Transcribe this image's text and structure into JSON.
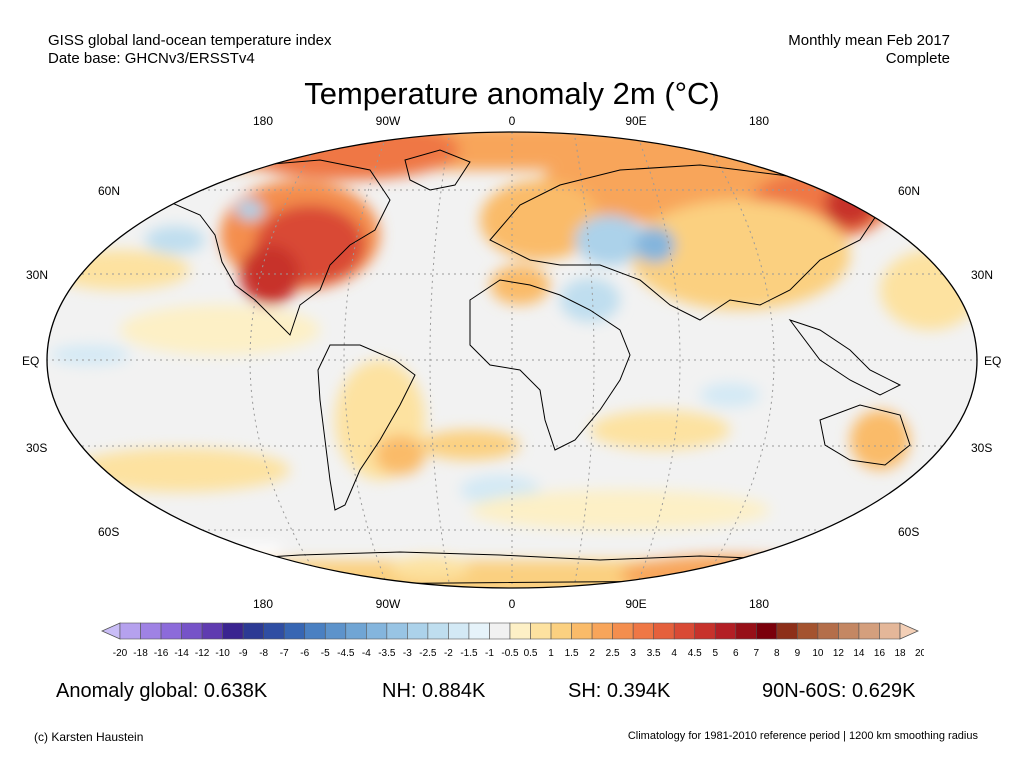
{
  "header": {
    "left_line1": "GISS global land-ocean temperature index",
    "left_line2": "Date base: GHCNv3/ERSSTv4",
    "right_line1": "Monthly mean Feb 2017",
    "right_line2": "Complete"
  },
  "title": "Temperature anomaly 2m (°C)",
  "map": {
    "lon_labels": [
      "180",
      "90W",
      "0",
      "90E",
      "180"
    ],
    "lat_labels": [
      "60N",
      "30N",
      "EQ",
      "30S",
      "60S"
    ]
  },
  "colorbar": {
    "labels": [
      "-20",
      "-18",
      "-16",
      "-14",
      "-12",
      "-10",
      "-9",
      "-8",
      "-7",
      "-6",
      "-5",
      "-4.5",
      "-4",
      "-3.5",
      "-3",
      "-2.5",
      "-2",
      "-1.5",
      "-1",
      "-0.5",
      "0.5",
      "1",
      "1.5",
      "2",
      "2.5",
      "3",
      "3.5",
      "4",
      "4.5",
      "5",
      "6",
      "7",
      "8",
      "9",
      "10",
      "12",
      "14",
      "16",
      "18",
      "20"
    ],
    "colors": [
      "#c9bdf6",
      "#b5a1ee",
      "#9f82e4",
      "#8c6bda",
      "#7653c8",
      "#5f3bb0",
      "#3a2490",
      "#2c3a94",
      "#2f4ea3",
      "#3766b3",
      "#4a80c2",
      "#5d93cb",
      "#70a5d4",
      "#84b5dd",
      "#98c4e4",
      "#acd2ea",
      "#bfdeef",
      "#d3e9f5",
      "#e6f3fa",
      "#f1f1f1",
      "#fdf0c6",
      "#fde2a0",
      "#fbd080",
      "#fabb69",
      "#f8a55a",
      "#f48e4e",
      "#ef7745",
      "#e5603c",
      "#d94a35",
      "#c7322b",
      "#b31f25",
      "#971018",
      "#7a000b",
      "#8d2f19",
      "#a4532f",
      "#b46e4a",
      "#c48763",
      "#d49f7d",
      "#e4b799",
      "#f3cfb6"
    ]
  },
  "stats": {
    "global": "Anomaly global: 0.638K",
    "nh": "NH: 0.884K",
    "sh": "SH: 0.394K",
    "region": "90N-60S: 0.629K"
  },
  "footer": {
    "left": "(c) Karsten Haustein",
    "right": "Climatology for 1981-2010 reference period | 1200 km smoothing radius"
  }
}
